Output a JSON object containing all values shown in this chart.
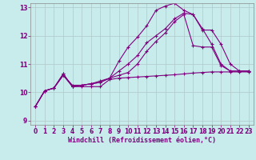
{
  "xlabel": "Windchill (Refroidissement éolien,°C)",
  "ylabel": "",
  "background_color": "#c8ecec",
  "line_color": "#800080",
  "grid_color": "#b0c8c8",
  "xlim": [
    -0.5,
    23.5
  ],
  "ylim": [
    8.85,
    13.15
  ],
  "xticks": [
    0,
    1,
    2,
    3,
    4,
    5,
    6,
    7,
    8,
    9,
    10,
    11,
    12,
    13,
    14,
    15,
    16,
    17,
    18,
    19,
    20,
    21,
    22,
    23
  ],
  "yticks": [
    9,
    10,
    11,
    12,
    13
  ],
  "lines": [
    {
      "x": [
        0,
        1,
        2,
        3,
        4,
        5,
        6,
        7,
        8,
        9,
        10,
        11,
        12,
        13,
        14,
        15,
        16,
        17,
        18,
        19,
        20,
        21,
        22,
        23
      ],
      "y": [
        9.5,
        10.05,
        10.15,
        10.6,
        10.2,
        10.2,
        10.2,
        10.2,
        10.45,
        10.5,
        10.52,
        10.54,
        10.56,
        10.58,
        10.6,
        10.62,
        10.65,
        10.68,
        10.7,
        10.72,
        10.72,
        10.72,
        10.72,
        10.72
      ]
    },
    {
      "x": [
        0,
        1,
        2,
        3,
        4,
        5,
        6,
        7,
        8,
        9,
        10,
        11,
        12,
        13,
        14,
        15,
        16,
        17,
        18,
        19,
        20,
        21,
        22,
        23
      ],
      "y": [
        9.5,
        10.05,
        10.15,
        10.6,
        10.25,
        10.25,
        10.3,
        10.4,
        10.5,
        11.1,
        11.6,
        11.95,
        12.35,
        12.9,
        13.05,
        13.15,
        12.9,
        12.75,
        12.25,
        11.7,
        11.0,
        10.75,
        10.75,
        10.75
      ]
    },
    {
      "x": [
        0,
        1,
        2,
        3,
        4,
        5,
        6,
        7,
        8,
        9,
        10,
        11,
        12,
        13,
        14,
        15,
        16,
        17,
        18,
        19,
        20,
        21,
        22,
        23
      ],
      "y": [
        9.5,
        10.05,
        10.15,
        10.65,
        10.2,
        10.25,
        10.3,
        10.35,
        10.5,
        10.75,
        11.0,
        11.3,
        11.75,
        12.0,
        12.25,
        12.6,
        12.8,
        12.75,
        12.2,
        12.2,
        11.7,
        11.0,
        10.75,
        10.75
      ]
    },
    {
      "x": [
        0,
        1,
        2,
        3,
        4,
        5,
        6,
        7,
        8,
        9,
        10,
        11,
        12,
        13,
        14,
        15,
        16,
        17,
        18,
        19,
        20,
        21,
        22,
        23
      ],
      "y": [
        9.5,
        10.05,
        10.15,
        10.65,
        10.2,
        10.25,
        10.3,
        10.35,
        10.5,
        10.6,
        10.7,
        11.0,
        11.45,
        11.8,
        12.1,
        12.5,
        12.75,
        11.65,
        11.6,
        11.6,
        10.95,
        10.75,
        10.75,
        10.75
      ]
    }
  ],
  "marker": "P",
  "marker_size": 3.0,
  "linewidth": 0.8,
  "tick_fontsize": 5.5,
  "label_fontsize": 6.0
}
